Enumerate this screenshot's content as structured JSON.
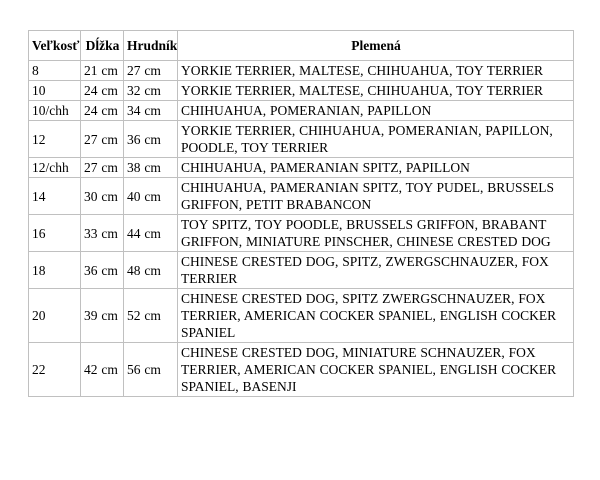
{
  "table": {
    "headers": [
      "Veľkosť",
      "Dĺžka",
      "Hrudník",
      "Plemená"
    ],
    "rows": [
      {
        "size": "8",
        "length": "21 cm",
        "chest": "27 cm",
        "breeds": "YORKIE TERRIER, MALTESE, CHIHUAHUA, TOY TERRIER"
      },
      {
        "size": "10",
        "length": "24 cm",
        "chest": "32 cm",
        "breeds": "YORKIE TERRIER, MALTESE, CHIHUAHUA, TOY TERRIER"
      },
      {
        "size": "10/chh",
        "length": "24 cm",
        "chest": "34 cm",
        "breeds": "CHIHUAHUA, POMERANIAN, PAPILLON"
      },
      {
        "size": "12",
        "length": "27 cm",
        "chest": "36 cm",
        "breeds": "YORKIE TERRIER, CHIHUAHUA, POMERANIAN, PAPILLON, POODLE, TOY TERRIER"
      },
      {
        "size": "12/chh",
        "length": "27 cm",
        "chest": "38 cm",
        "breeds": "CHIHUAHUA, PAMERANIAN SPITZ, PAPILLON"
      },
      {
        "size": "14",
        "length": "30 cm",
        "chest": "40 cm",
        "breeds": "CHIHUAHUA, PAMERANIAN SPITZ, TOY PUDEL, BRUSSELS GRIFFON, PETIT BRABANCON"
      },
      {
        "size": "16",
        "length": "33 cm",
        "chest": "44 cm",
        "breeds": "TOY SPITZ, TOY POODLE, BRUSSELS GRIFFON, BRABANT GRIFFON, MINIATURE PINSCHER, CHINESE CRESTED DOG"
      },
      {
        "size": "18",
        "length": "36 cm",
        "chest": "48 cm",
        "breeds": "CHINESE CRESTED DOG, SPITZ, ZWERGSCHNAUZER, FOX TERRIER"
      },
      {
        "size": "20",
        "length": "39 cm",
        "chest": "52 cm",
        "breeds": "CHINESE CRESTED DOG, SPITZ ZWERGSCHNAUZER, FOX TERRIER, AMERICAN COCKER SPANIEL, ENGLISH COCKER SPANIEL"
      },
      {
        "size": "22",
        "length": "42 cm",
        "chest": "56 cm",
        "breeds": "CHINESE CRESTED DOG, MINIATURE SCHNAUZER, FOX TERRIER, AMERICAN COCKER SPANIEL, ENGLISH COCKER SPANIEL, BASENJI"
      }
    ]
  },
  "colors": {
    "border": "#c0c0c0",
    "background": "#ffffff",
    "text": "#000000"
  }
}
